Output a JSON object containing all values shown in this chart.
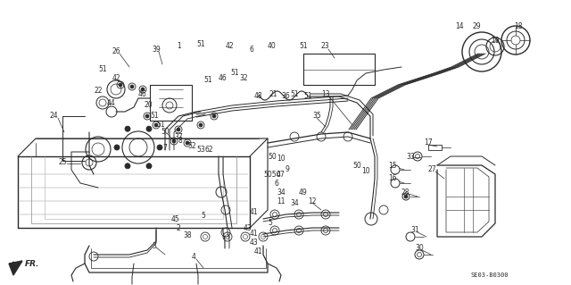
{
  "bg_color": "#ffffff",
  "diagram_color": "#2a2a2a",
  "fig_width": 6.4,
  "fig_height": 3.19,
  "dpi": 100,
  "diagram_ref": "SE03-B0300"
}
